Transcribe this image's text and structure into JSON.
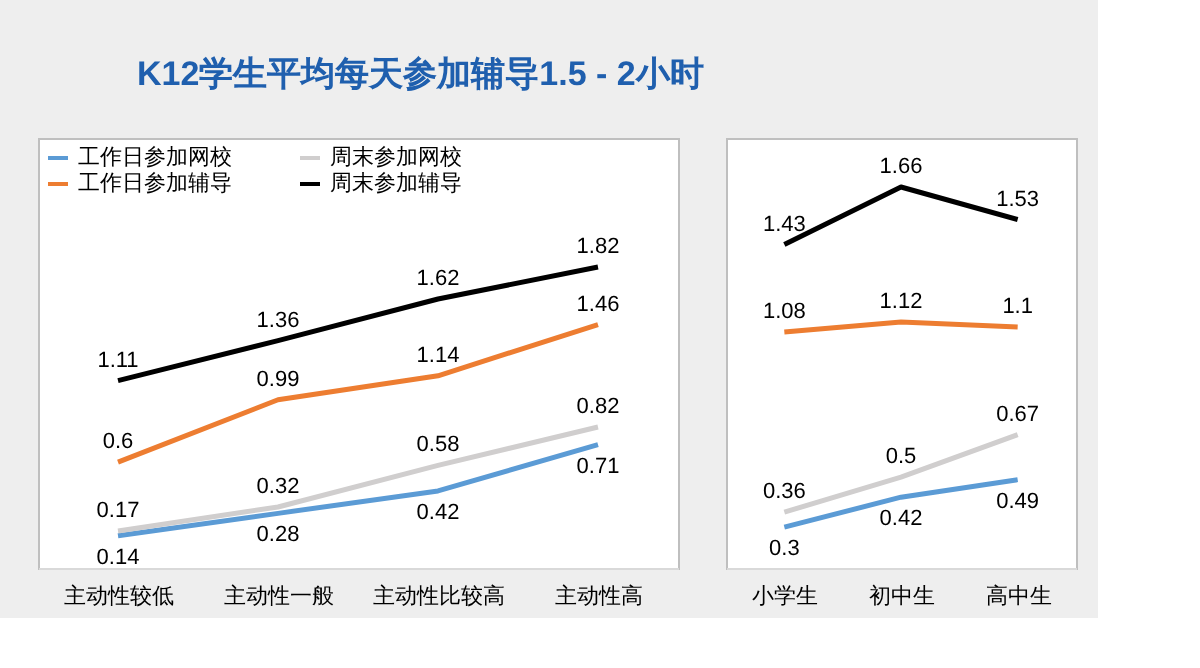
{
  "chart_data": [
    {
      "type": "line",
      "title": "K12学生平均每天参加辅导1.5 - 2小时",
      "categories": [
        "主动性较低",
        "主动性一般",
        "主动性比较高",
        "主动性高"
      ],
      "series": [
        {
          "name": "工作日参加网校",
          "color": "#5b9bd5",
          "values": [
            0.14,
            0.28,
            0.42,
            0.71
          ]
        },
        {
          "name": "工作日参加辅导",
          "color": "#ed7d31",
          "values": [
            0.6,
            0.99,
            1.14,
            1.46
          ]
        },
        {
          "name": "周末参加网校",
          "color": "#d0cece",
          "values": [
            0.17,
            0.32,
            0.58,
            0.82
          ]
        },
        {
          "name": "周末参加辅导",
          "color": "#000000",
          "values": [
            1.11,
            1.36,
            1.62,
            1.82
          ]
        }
      ],
      "data_labels": true,
      "legend": "top left",
      "grid": false,
      "tick_labels": "x"
    },
    {
      "type": "line",
      "categories": [
        "小学生",
        "初中生",
        "高中生"
      ],
      "series": [
        {
          "color": "#5b9bd5",
          "values": [
            0.3,
            0.42,
            0.49
          ]
        },
        {
          "color": "#ed7d31",
          "values": [
            1.08,
            1.12,
            1.1
          ]
        },
        {
          "color": "#d0cece",
          "values": [
            0.36,
            0.5,
            0.67
          ]
        },
        {
          "color": "#000000",
          "values": [
            1.43,
            1.66,
            1.53
          ]
        }
      ],
      "data_labels": true,
      "legend": false,
      "grid": false,
      "tick_labels": "x"
    }
  ]
}
